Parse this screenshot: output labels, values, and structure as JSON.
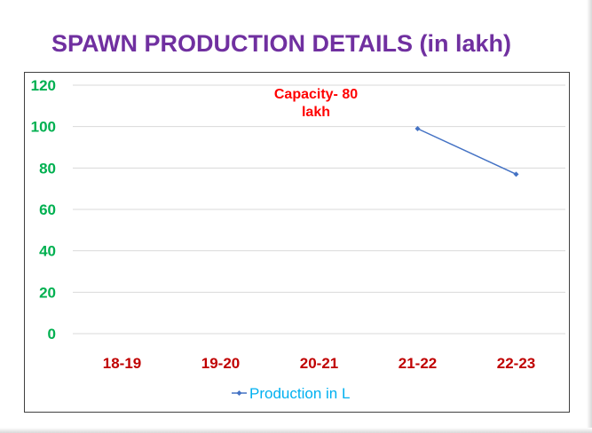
{
  "title": "SPAWN PRODUCTION DETAILS (in lakh)",
  "chart_data": {
    "type": "line",
    "categories": [
      "18-19",
      "19-20",
      "20-21",
      "21-22",
      "22-23"
    ],
    "series": [
      {
        "name": "Production in L",
        "values": [
          null,
          null,
          null,
          99,
          77
        ],
        "color": "#4472c4"
      }
    ],
    "ylim": [
      0,
      120
    ],
    "yticks": [
      0,
      20,
      40,
      60,
      80,
      100,
      120
    ],
    "grid": true,
    "legend": "bottom",
    "annotation": [
      "Capacity- 80",
      "lakh"
    ],
    "colors": {
      "title": "#7030a0",
      "ytick": "#00b050",
      "xtick": "#c00000",
      "annotation": "#ff0000",
      "legend_text": "#00b0f0"
    }
  }
}
